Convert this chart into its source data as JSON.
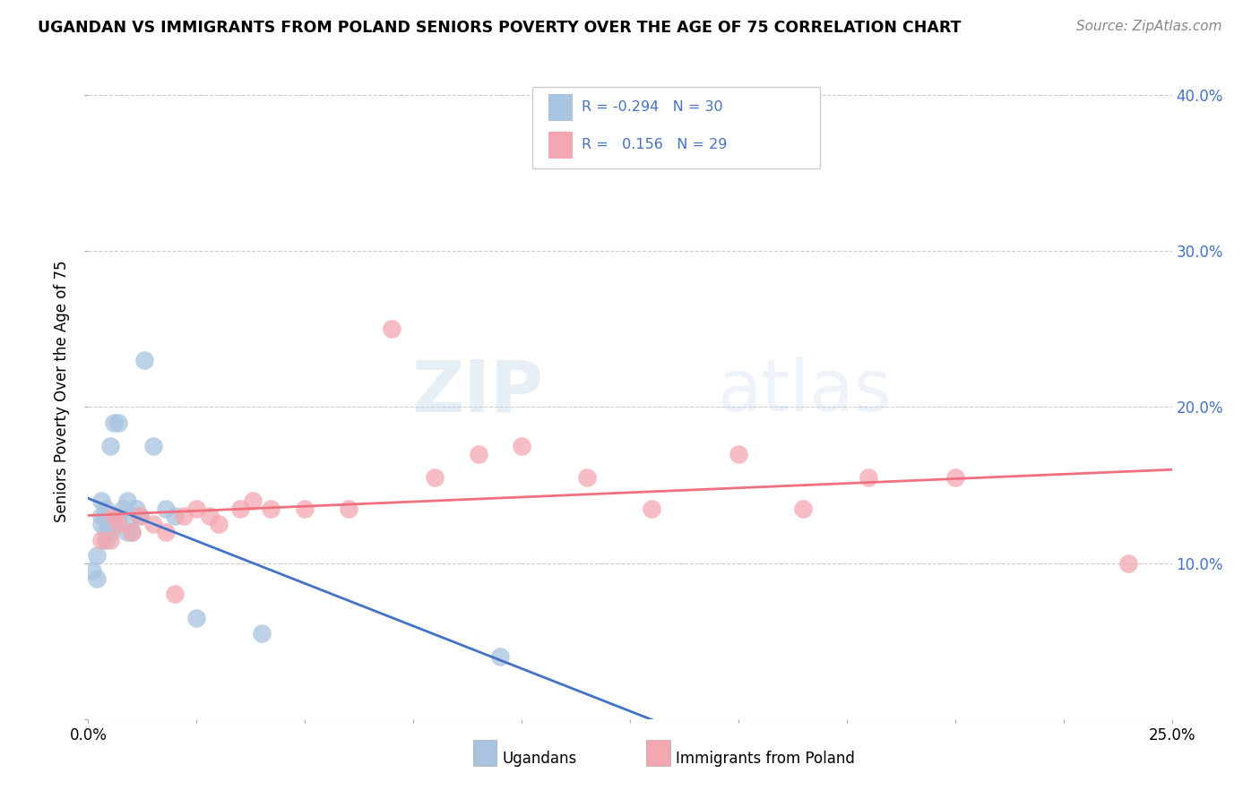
{
  "title": "UGANDAN VS IMMIGRANTS FROM POLAND SENIORS POVERTY OVER THE AGE OF 75 CORRELATION CHART",
  "source": "Source: ZipAtlas.com",
  "ylabel": "Seniors Poverty Over the Age of 75",
  "xlim": [
    0.0,
    0.25
  ],
  "ylim": [
    0.0,
    0.42
  ],
  "ugandan_color": "#a8c4e0",
  "poland_color": "#f4a7b0",
  "ugandan_line_color": "#4472c4",
  "poland_line_color": "#f07080",
  "legend_text_color": "#4472c4",
  "r_ugandan": -0.294,
  "n_ugandan": 30,
  "r_poland": 0.156,
  "n_poland": 29,
  "ugandan_x": [
    0.001,
    0.002,
    0.002,
    0.003,
    0.003,
    0.003,
    0.004,
    0.004,
    0.004,
    0.005,
    0.005,
    0.005,
    0.006,
    0.006,
    0.007,
    0.007,
    0.008,
    0.009,
    0.009,
    0.01,
    0.01,
    0.011,
    0.012,
    0.013,
    0.015,
    0.018,
    0.02,
    0.025,
    0.04,
    0.095
  ],
  "ugandan_y": [
    0.095,
    0.09,
    0.105,
    0.125,
    0.13,
    0.14,
    0.115,
    0.12,
    0.135,
    0.12,
    0.125,
    0.175,
    0.125,
    0.19,
    0.13,
    0.19,
    0.135,
    0.14,
    0.12,
    0.12,
    0.13,
    0.135,
    0.13,
    0.23,
    0.175,
    0.135,
    0.13,
    0.065,
    0.055,
    0.04
  ],
  "poland_x": [
    0.003,
    0.005,
    0.006,
    0.007,
    0.01,
    0.012,
    0.015,
    0.018,
    0.02,
    0.022,
    0.025,
    0.028,
    0.03,
    0.035,
    0.038,
    0.042,
    0.05,
    0.06,
    0.07,
    0.08,
    0.09,
    0.1,
    0.115,
    0.13,
    0.15,
    0.165,
    0.18,
    0.2,
    0.24
  ],
  "poland_y": [
    0.115,
    0.115,
    0.13,
    0.125,
    0.12,
    0.13,
    0.125,
    0.12,
    0.08,
    0.13,
    0.135,
    0.13,
    0.125,
    0.135,
    0.14,
    0.135,
    0.135,
    0.135,
    0.25,
    0.155,
    0.17,
    0.175,
    0.155,
    0.135,
    0.17,
    0.135,
    0.155,
    0.155,
    0.1
  ],
  "background_color": "#ffffff",
  "grid_color": "#cccccc"
}
